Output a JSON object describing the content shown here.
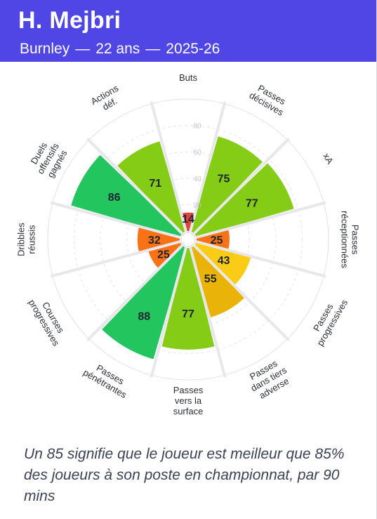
{
  "header": {
    "player_name": "H. Mejbri",
    "club": "Burnley",
    "age": "22 ans",
    "season": "2025-26",
    "separator": "—",
    "background_color": "#4f46e5"
  },
  "chart_data": {
    "type": "polar-bar",
    "scale_ticks": [
      "20",
      "40",
      "60",
      "80"
    ],
    "rlim": [
      0,
      100
    ],
    "categories": [
      {
        "label": "Buts",
        "value": 14,
        "color": "#e0453a"
      },
      {
        "label": "Passes décisives",
        "value": 75,
        "color": "#84cc16"
      },
      {
        "label": "xA",
        "value": 77,
        "color": "#84cc16"
      },
      {
        "label": "Passes réceptionnées",
        "value": 25,
        "color": "#f97316"
      },
      {
        "label": "Passes progressives",
        "value": 43,
        "color": "#facc15"
      },
      {
        "label": "Passes dans tiers adverse",
        "value": 55,
        "color": "#eab308"
      },
      {
        "label": "Passes vers la surface",
        "value": 77,
        "color": "#84cc16"
      },
      {
        "label": "Passes pénétrantes",
        "value": 88,
        "color": "#22c55e"
      },
      {
        "label": "Courses progressives",
        "value": 25,
        "color": "#f97316"
      },
      {
        "label": "Dribbles réussis",
        "value": 32,
        "color": "#f97316"
      },
      {
        "label": "Duels offensifs gagnés",
        "value": 86,
        "color": "#22c55e"
      },
      {
        "label": "Actions déf.",
        "value": 71,
        "color": "#84cc16"
      }
    ]
  },
  "footnote": "Un 85 signifie que le joueur est meilleur que 85% des joueurs à son poste en championnat, par 90 mins"
}
